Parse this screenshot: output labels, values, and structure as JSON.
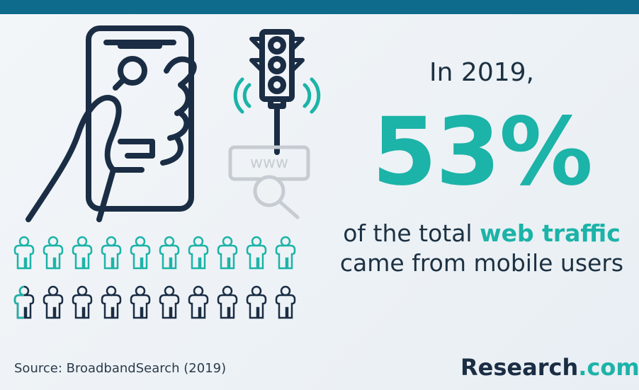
{
  "headline": {
    "intro": "In 2019,",
    "stat": "53%",
    "line1_prefix": "of the total",
    "line1_highlight": "web traffic",
    "line2": "came from mobile users"
  },
  "illustration": {
    "www_label": "www"
  },
  "footer": {
    "source": "Source: BroadbandSearch (2019)",
    "brand_name": "Research",
    "brand_suffix": ".com"
  }
}
